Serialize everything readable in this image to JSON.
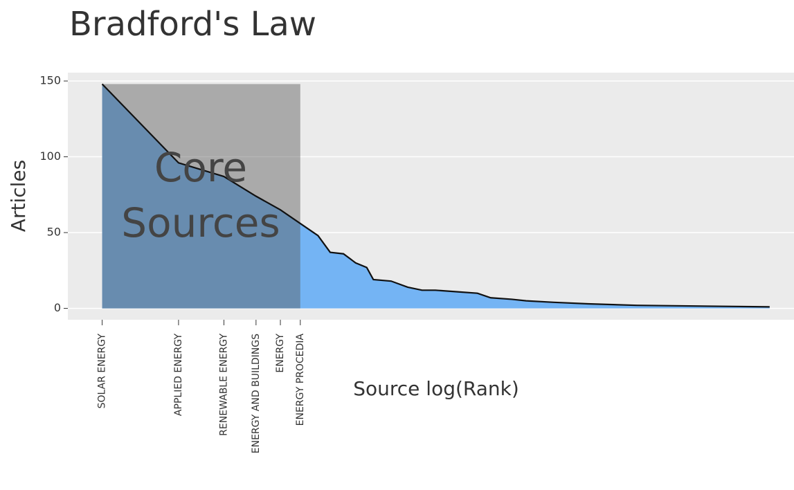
{
  "chart_data": {
    "type": "area",
    "title": "Bradford's Law",
    "xlabel": "Source log(Rank)",
    "ylabel": "Articles",
    "annotation": "Core Sources",
    "color": "#74b4f4",
    "x": [
      0,
      0.69,
      1.1,
      1.39,
      1.61,
      1.79,
      1.95,
      2.06,
      2.18,
      2.29,
      2.39,
      2.45,
      2.61,
      2.76,
      2.89,
      3.01,
      3.2,
      3.39,
      3.51,
      3.7,
      3.83,
      4.08,
      4.39,
      4.83,
      6.03
    ],
    "values": [
      148,
      96,
      87,
      74,
      65,
      56,
      48,
      37,
      36,
      30,
      27,
      19,
      18,
      14,
      12,
      12,
      11,
      10,
      7,
      6,
      5,
      4,
      3,
      2,
      1
    ],
    "xlim": [
      -0.31,
      6.25
    ],
    "ylim": [
      -7.5,
      155.5
    ],
    "xticks": [
      {
        "value": 0,
        "label": "SOLAR ENERGY"
      },
      {
        "value": 0.69,
        "label": "APPLIED ENERGY"
      },
      {
        "value": 1.1,
        "label": "RENEWABLE ENERGY"
      },
      {
        "value": 1.39,
        "label": "ENERGY AND BUILDINGS"
      },
      {
        "value": 1.61,
        "label": "ENERGY"
      },
      {
        "value": 1.79,
        "label": "ENERGY PROCEDIA"
      }
    ],
    "yticks": [
      0,
      50,
      100,
      150
    ],
    "grid": true
  }
}
